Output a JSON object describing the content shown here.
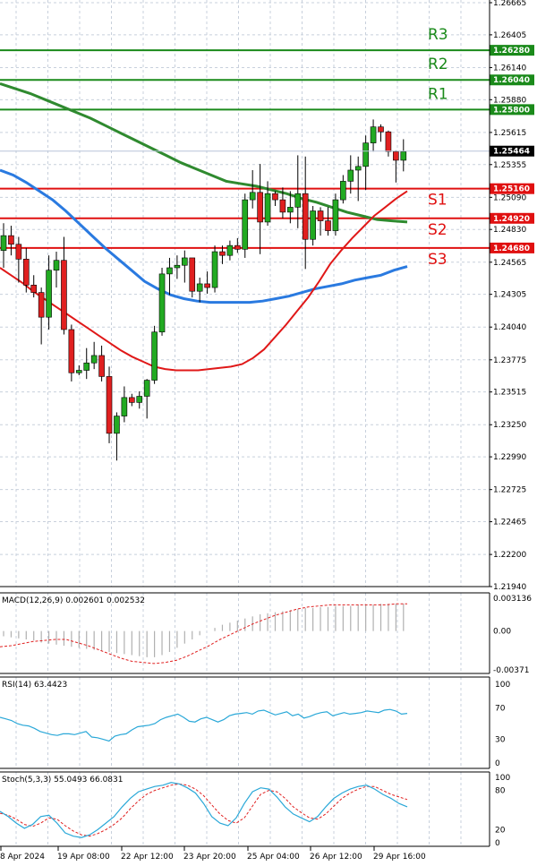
{
  "chart_data": [
    {
      "type": "candlestick",
      "panel": "price",
      "y_ticks": [
        "1.26665",
        "1.26405",
        "1.26140",
        "1.25880",
        "1.25615",
        "1.25355",
        "1.25090",
        "1.24830",
        "1.24565",
        "1.24305",
        "1.24040",
        "1.23775",
        "1.23515",
        "1.23250",
        "1.22990",
        "1.22725",
        "1.22465",
        "1.22200",
        "1.21940"
      ],
      "ylim": [
        1.2194,
        1.26665
      ],
      "current_price": {
        "label": "1.25464",
        "value": 1.25464
      },
      "levels": [
        {
          "name": "R3",
          "value": 1.2628,
          "label": "1.26280",
          "color": "#1a8a1a"
        },
        {
          "name": "R2",
          "value": 1.2604,
          "label": "1.26040",
          "color": "#1a8a1a"
        },
        {
          "name": "R1",
          "value": 1.258,
          "label": "1.25800",
          "color": "#1a8a1a"
        },
        {
          "name": "S1",
          "value": 1.2516,
          "label": "1.25160",
          "color": "#e01010"
        },
        {
          "name": "S2",
          "value": 1.2492,
          "label": "1.24920",
          "color": "#e01010"
        },
        {
          "name": "S3",
          "value": 1.2468,
          "label": "1.24680",
          "color": "#e01010"
        }
      ],
      "x_labels": [
        "8 Apr 2024",
        "19 Apr 08:00",
        "22 Apr 12:00",
        "23 Apr 20:00",
        "25 Apr 04:00",
        "26 Apr 12:00",
        "29 Apr 16:00"
      ],
      "candles": [
        {
          "o": 1.2466,
          "h": 1.2488,
          "l": 1.2452,
          "c": 1.2478
        },
        {
          "o": 1.2478,
          "h": 1.2486,
          "l": 1.2462,
          "c": 1.2471
        },
        {
          "o": 1.2471,
          "h": 1.2477,
          "l": 1.244,
          "c": 1.2459
        },
        {
          "o": 1.2459,
          "h": 1.2468,
          "l": 1.2432,
          "c": 1.2438
        },
        {
          "o": 1.2438,
          "h": 1.2446,
          "l": 1.2428,
          "c": 1.2432
        },
        {
          "o": 1.2432,
          "h": 1.2436,
          "l": 1.239,
          "c": 1.2412
        },
        {
          "o": 1.2412,
          "h": 1.2462,
          "l": 1.2402,
          "c": 1.245
        },
        {
          "o": 1.245,
          "h": 1.2465,
          "l": 1.2436,
          "c": 1.2458
        },
        {
          "o": 1.2458,
          "h": 1.2477,
          "l": 1.2398,
          "c": 1.2402
        },
        {
          "o": 1.2402,
          "h": 1.2406,
          "l": 1.236,
          "c": 1.2367
        },
        {
          "o": 1.2367,
          "h": 1.2373,
          "l": 1.2365,
          "c": 1.2369
        },
        {
          "o": 1.2369,
          "h": 1.2387,
          "l": 1.2362,
          "c": 1.2375
        },
        {
          "o": 1.2375,
          "h": 1.2392,
          "l": 1.237,
          "c": 1.2381
        },
        {
          "o": 1.2381,
          "h": 1.2389,
          "l": 1.236,
          "c": 1.2364
        },
        {
          "o": 1.2364,
          "h": 1.2372,
          "l": 1.231,
          "c": 1.2318
        },
        {
          "o": 1.2318,
          "h": 1.2335,
          "l": 1.2296,
          "c": 1.2332
        },
        {
          "o": 1.2332,
          "h": 1.2356,
          "l": 1.2327,
          "c": 1.2347
        },
        {
          "o": 1.2347,
          "h": 1.235,
          "l": 1.234,
          "c": 1.2343
        },
        {
          "o": 1.2343,
          "h": 1.2352,
          "l": 1.2338,
          "c": 1.2348
        },
        {
          "o": 1.2348,
          "h": 1.2362,
          "l": 1.233,
          "c": 1.2361
        },
        {
          "o": 1.2361,
          "h": 1.2405,
          "l": 1.2358,
          "c": 1.24
        },
        {
          "o": 1.24,
          "h": 1.2452,
          "l": 1.2397,
          "c": 1.2447
        },
        {
          "o": 1.2447,
          "h": 1.246,
          "l": 1.243,
          "c": 1.2452
        },
        {
          "o": 1.2452,
          "h": 1.2462,
          "l": 1.2443,
          "c": 1.2454
        },
        {
          "o": 1.2454,
          "h": 1.2466,
          "l": 1.244,
          "c": 1.246
        },
        {
          "o": 1.246,
          "h": 1.2458,
          "l": 1.2428,
          "c": 1.2433
        },
        {
          "o": 1.2433,
          "h": 1.2444,
          "l": 1.2424,
          "c": 1.2439
        },
        {
          "o": 1.2439,
          "h": 1.2449,
          "l": 1.2431,
          "c": 1.2436
        },
        {
          "o": 1.2436,
          "h": 1.247,
          "l": 1.2432,
          "c": 1.2465
        },
        {
          "o": 1.2465,
          "h": 1.247,
          "l": 1.2455,
          "c": 1.2462
        },
        {
          "o": 1.2462,
          "h": 1.2474,
          "l": 1.2458,
          "c": 1.247
        },
        {
          "o": 1.247,
          "h": 1.2476,
          "l": 1.2464,
          "c": 1.2467
        },
        {
          "o": 1.2467,
          "h": 1.2512,
          "l": 1.246,
          "c": 1.2507
        },
        {
          "o": 1.2507,
          "h": 1.2531,
          "l": 1.25,
          "c": 1.2513
        },
        {
          "o": 1.2513,
          "h": 1.2536,
          "l": 1.2463,
          "c": 1.2489
        },
        {
          "o": 1.2489,
          "h": 1.2522,
          "l": 1.2486,
          "c": 1.2512
        },
        {
          "o": 1.2512,
          "h": 1.2514,
          "l": 1.2502,
          "c": 1.2507
        },
        {
          "o": 1.2507,
          "h": 1.2517,
          "l": 1.2492,
          "c": 1.2497
        },
        {
          "o": 1.2497,
          "h": 1.2514,
          "l": 1.2488,
          "c": 1.2501
        },
        {
          "o": 1.2501,
          "h": 1.2543,
          "l": 1.2484,
          "c": 1.2512
        },
        {
          "o": 1.2512,
          "h": 1.2542,
          "l": 1.2451,
          "c": 1.2475
        },
        {
          "o": 1.2475,
          "h": 1.2502,
          "l": 1.247,
          "c": 1.2498
        },
        {
          "o": 1.2498,
          "h": 1.2501,
          "l": 1.2478,
          "c": 1.249
        },
        {
          "o": 1.249,
          "h": 1.2501,
          "l": 1.2478,
          "c": 1.2482
        },
        {
          "o": 1.2482,
          "h": 1.2512,
          "l": 1.2478,
          "c": 1.2507
        },
        {
          "o": 1.2507,
          "h": 1.2527,
          "l": 1.2504,
          "c": 1.2522
        },
        {
          "o": 1.2522,
          "h": 1.2543,
          "l": 1.2512,
          "c": 1.2531
        },
        {
          "o": 1.2531,
          "h": 1.2542,
          "l": 1.2506,
          "c": 1.2534
        },
        {
          "o": 1.2534,
          "h": 1.2559,
          "l": 1.2515,
          "c": 1.2553
        },
        {
          "o": 1.2553,
          "h": 1.2572,
          "l": 1.2546,
          "c": 1.2566
        },
        {
          "o": 1.2566,
          "h": 1.2568,
          "l": 1.2554,
          "c": 1.2562
        },
        {
          "o": 1.2562,
          "h": 1.2563,
          "l": 1.2542,
          "c": 1.2546
        },
        {
          "o": 1.2546,
          "h": 1.2547,
          "l": 1.2521,
          "c": 1.2539
        },
        {
          "o": 1.2539,
          "h": 1.2556,
          "l": 1.253,
          "c": 1.2546
        }
      ],
      "ma_red": [
        1.2452,
        1.2446,
        1.244,
        1.2433,
        1.2427,
        1.2421,
        1.2415,
        1.2409,
        1.2403,
        1.2397,
        1.2391,
        1.2385,
        1.238,
        1.2376,
        1.2372,
        1.237,
        1.2369,
        1.2369,
        1.2369,
        1.237,
        1.2371,
        1.2372,
        1.2374,
        1.2379,
        1.2386,
        1.2396,
        1.2406,
        1.2417,
        1.2428,
        1.2441,
        1.2455,
        1.2466,
        1.2476,
        1.2485,
        1.2494,
        1.2501,
        1.2508,
        1.2514
      ],
      "ma_green": [
        1.2601,
        1.2597,
        1.2593,
        1.2588,
        1.2583,
        1.2578,
        1.2573,
        1.2567,
        1.2561,
        1.2555,
        1.2549,
        1.2543,
        1.2537,
        1.2532,
        1.2527,
        1.2522,
        1.252,
        1.2518,
        1.2515,
        1.2512,
        1.2508,
        1.2505,
        1.2501,
        1.2497,
        1.2494,
        1.2491,
        1.249,
        1.2489
      ],
      "ma_blue": [
        1.2531,
        1.2527,
        1.2521,
        1.2514,
        1.2507,
        1.2498,
        1.2488,
        1.2478,
        1.2468,
        1.2459,
        1.245,
        1.2441,
        1.2435,
        1.243,
        1.2427,
        1.2425,
        1.2424,
        1.2424,
        1.2424,
        1.2424,
        1.2425,
        1.2427,
        1.2429,
        1.2432,
        1.2435,
        1.2437,
        1.2439,
        1.2442,
        1.2444,
        1.2446,
        1.245,
        1.2453
      ]
    },
    {
      "type": "bar",
      "panel": "macd",
      "title": "MACD(12,26,9) 0.002601 0.002532",
      "y_ticks": [
        "0.003136",
        "0.00",
        "-0.00371"
      ],
      "ylim": [
        -0.00371,
        0.003136
      ],
      "histogram": [
        -0.0005,
        -0.0006,
        -0.0007,
        -0.0008,
        -0.0009,
        -0.0011,
        -0.0012,
        -0.0013,
        -0.0014,
        -0.0015,
        -0.0016,
        -0.0017,
        -0.0018,
        -0.0019,
        -0.002,
        -0.0021,
        -0.0022,
        -0.0023,
        -0.0024,
        -0.0025,
        -0.0025,
        -0.0023,
        -0.002,
        -0.0016,
        -0.0012,
        -0.0008,
        -0.0004,
        0.0,
        0.0003,
        0.0006,
        0.0008,
        0.001,
        0.0012,
        0.0014,
        0.0016,
        0.0017,
        0.0018,
        0.0019,
        0.002,
        0.0021,
        0.0022,
        0.0022,
        0.0023,
        0.0023,
        0.0024,
        0.0024,
        0.0024,
        0.0025,
        0.0025,
        0.0025,
        0.0026,
        0.0026,
        0.0026,
        0.0026
      ],
      "signal": [
        -0.0015,
        -0.0014,
        -0.0012,
        -0.001,
        -0.0009,
        -0.0008,
        -0.0008,
        -0.0011,
        -0.0014,
        -0.0018,
        -0.0022,
        -0.0026,
        -0.0029,
        -0.003,
        -0.0031,
        -0.003,
        -0.0028,
        -0.0024,
        -0.0019,
        -0.0014,
        -0.0008,
        -0.0003,
        0.0002,
        0.0007,
        0.0011,
        0.0015,
        0.0018,
        0.0021,
        0.0023,
        0.0024,
        0.0025,
        0.0025,
        0.0025,
        0.0025,
        0.0025,
        0.0025,
        0.0026,
        0.0026
      ]
    },
    {
      "type": "line",
      "panel": "rsi",
      "title": "RSI(14) 63.4423",
      "y_ticks": [
        "100",
        "70",
        "30",
        "0"
      ],
      "ylim": [
        0,
        100
      ],
      "values": [
        58,
        56,
        54,
        50,
        48,
        47,
        44,
        40,
        38,
        36,
        35,
        37,
        37,
        36,
        38,
        40,
        33,
        32,
        30,
        28,
        34,
        36,
        37,
        42,
        46,
        47,
        48,
        50,
        55,
        58,
        60,
        62,
        58,
        53,
        52,
        56,
        58,
        55,
        52,
        55,
        60,
        62,
        63,
        64,
        62,
        66,
        67,
        64,
        61,
        63,
        65,
        60,
        62,
        57,
        59,
        62,
        64,
        65,
        60,
        62,
        64,
        62,
        63,
        64,
        66,
        65,
        64,
        67,
        68,
        66,
        62,
        63
      ]
    },
    {
      "type": "line",
      "panel": "stoch",
      "title": "Stoch(5,3,3) 55.0493 66.0831",
      "y_ticks": [
        "100",
        "80",
        "20",
        "0"
      ],
      "ylim": [
        0,
        100
      ],
      "k": [
        48,
        40,
        30,
        22,
        28,
        40,
        42,
        30,
        15,
        10,
        8,
        12,
        20,
        30,
        40,
        55,
        68,
        78,
        82,
        86,
        88,
        92,
        90,
        84,
        76,
        60,
        40,
        30,
        26,
        38,
        60,
        78,
        84,
        82,
        70,
        55,
        44,
        38,
        32,
        40,
        55,
        68,
        76,
        82,
        86,
        88,
        82,
        74,
        68,
        60,
        55
      ],
      "d": [
        45,
        42,
        36,
        28,
        25,
        30,
        38,
        36,
        26,
        18,
        12,
        10,
        14,
        20,
        28,
        38,
        52,
        64,
        74,
        80,
        84,
        88,
        90,
        88,
        82,
        72,
        58,
        44,
        34,
        30,
        38,
        56,
        74,
        80,
        78,
        68,
        55,
        46,
        38,
        36,
        44,
        56,
        68,
        76,
        82,
        86,
        86,
        80,
        74,
        70,
        66
      ]
    }
  ],
  "colors": {
    "resistance": "#1a8a1a",
    "support": "#e01010",
    "bull": "#22aa22",
    "bear": "#e02020",
    "ma_red": "#e01818",
    "ma_green": "#2f8a2f",
    "ma_blue": "#2a7ae0",
    "grid": "#c8d0dc"
  }
}
